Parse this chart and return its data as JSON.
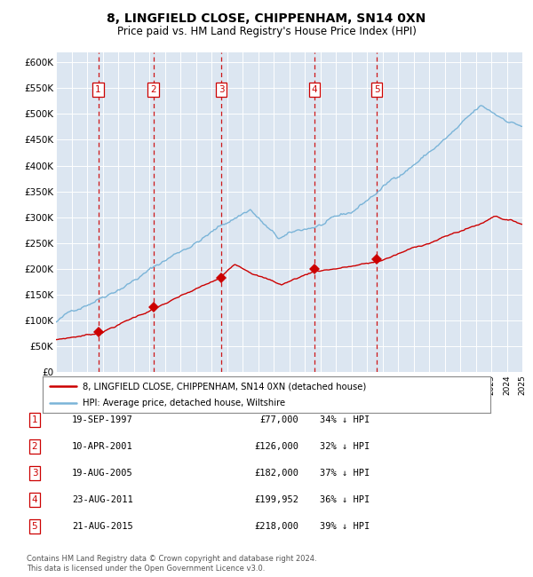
{
  "title": "8, LINGFIELD CLOSE, CHIPPENHAM, SN14 0XN",
  "subtitle": "Price paid vs. HM Land Registry's House Price Index (HPI)",
  "background_color": "#dce6f1",
  "ylim": [
    0,
    620000
  ],
  "yticks": [
    0,
    50000,
    100000,
    150000,
    200000,
    250000,
    300000,
    350000,
    400000,
    450000,
    500000,
    550000,
    600000
  ],
  "ytick_labels": [
    "£0",
    "£50K",
    "£100K",
    "£150K",
    "£200K",
    "£250K",
    "£300K",
    "£350K",
    "£400K",
    "£450K",
    "£500K",
    "£550K",
    "£600K"
  ],
  "hpi_color": "#7ab4d8",
  "price_color": "#cc0000",
  "vline_color": "#cc0000",
  "sale_dates_x": [
    1997.72,
    2001.27,
    2005.63,
    2011.64,
    2015.64
  ],
  "sale_prices_y": [
    77000,
    126000,
    182000,
    199952,
    218000
  ],
  "sale_numbers": [
    1,
    2,
    3,
    4,
    5
  ],
  "footer_text": "Contains HM Land Registry data © Crown copyright and database right 2024.\nThis data is licensed under the Open Government Licence v3.0.",
  "table_rows": [
    [
      "1",
      "19-SEP-1997",
      "£77,000",
      "34% ↓ HPI"
    ],
    [
      "2",
      "10-APR-2001",
      "£126,000",
      "32% ↓ HPI"
    ],
    [
      "3",
      "19-AUG-2005",
      "£182,000",
      "37% ↓ HPI"
    ],
    [
      "4",
      "23-AUG-2011",
      "£199,952",
      "36% ↓ HPI"
    ],
    [
      "5",
      "21-AUG-2015",
      "£218,000",
      "39% ↓ HPI"
    ]
  ],
  "legend_line1": "8, LINGFIELD CLOSE, CHIPPENHAM, SN14 0XN (detached house)",
  "legend_line2": "HPI: Average price, detached house, Wiltshire"
}
